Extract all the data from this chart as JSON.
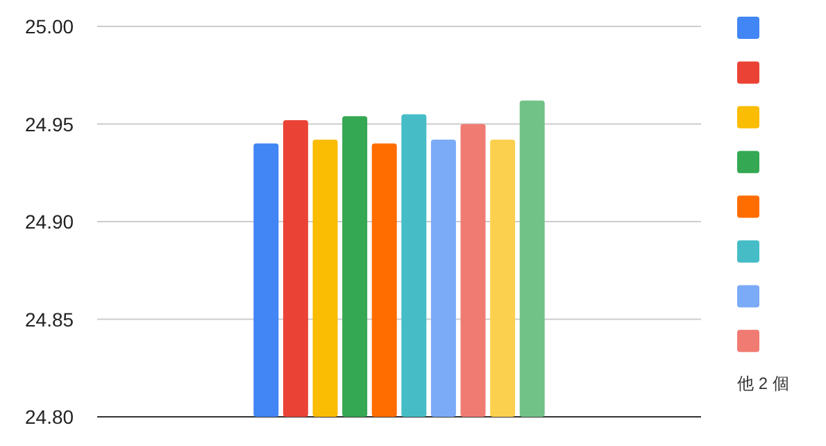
{
  "chart_data": {
    "type": "bar",
    "categories": [
      null
    ],
    "ylim": [
      24.8,
      25.0
    ],
    "yticks": [
      {
        "value": 24.8,
        "label": "24.80"
      },
      {
        "value": 24.85,
        "label": "24.85"
      },
      {
        "value": 24.9,
        "label": "24.90"
      },
      {
        "value": 24.95,
        "label": "24.95"
      },
      {
        "value": 25.0,
        "label": "25.00"
      }
    ],
    "grid": "y",
    "series": [
      {
        "color": "#4285f4",
        "values": [
          24.94
        ]
      },
      {
        "color": "#ea4335",
        "values": [
          24.952
        ]
      },
      {
        "color": "#fbbc04",
        "values": [
          24.942
        ]
      },
      {
        "color": "#34a853",
        "values": [
          24.954
        ]
      },
      {
        "color": "#ff6d01",
        "values": [
          24.94
        ]
      },
      {
        "color": "#46bdc6",
        "values": [
          24.955
        ]
      },
      {
        "color": "#7baaf7",
        "values": [
          24.942
        ]
      },
      {
        "color": "#f07b72",
        "values": [
          24.95
        ]
      },
      {
        "color": "#fcd04f",
        "values": [
          24.942
        ]
      },
      {
        "color": "#71c287",
        "values": [
          24.962
        ]
      }
    ],
    "annotations": [
      "他 2 個"
    ]
  }
}
